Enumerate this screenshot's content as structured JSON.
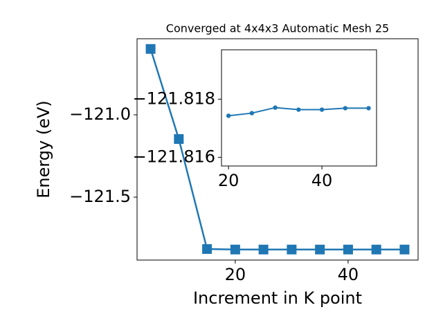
{
  "chart_data": [
    {
      "type": "line",
      "title": "Converged at 4x4x3 Automatic Mesh 25",
      "x_label": "Increment in K point",
      "y_label": "Energy (eV)",
      "x": [
        5,
        10,
        15,
        20,
        25,
        30,
        35,
        40,
        45,
        50
      ],
      "values": [
        -120.6,
        -121.147,
        -121.815,
        -121.818,
        -121.818,
        -121.818,
        -121.818,
        -121.818,
        -121.818,
        -121.818
      ],
      "color": "#1f77b4",
      "marker": "square",
      "xlim": [
        2.6,
        52.4
      ],
      "xticks": [
        20,
        40
      ],
      "ylim": [
        -121.882,
        -120.538
      ],
      "yticks": [
        {
          "value": -121.0,
          "label": "−121.0"
        },
        {
          "value": -121.5,
          "label": "−121.5"
        }
      ]
    },
    {
      "type": "line",
      "x": [
        20,
        25,
        30,
        35,
        40,
        45,
        50
      ],
      "values": [
        -121.81743,
        -121.81752,
        -121.81771,
        -121.81764,
        -121.81764,
        -121.81769,
        -121.81769
      ],
      "color": "#1f77b4",
      "marker": "circle",
      "xlim": [
        18.5,
        51.7
      ],
      "xticks": [
        20,
        40
      ],
      "ylim": [
        -121.8157,
        -121.8197
      ],
      "yticks": [
        {
          "value": -121.818,
          "label": "−121.818"
        },
        {
          "value": -121.816,
          "label": "−121.816"
        }
      ]
    }
  ]
}
